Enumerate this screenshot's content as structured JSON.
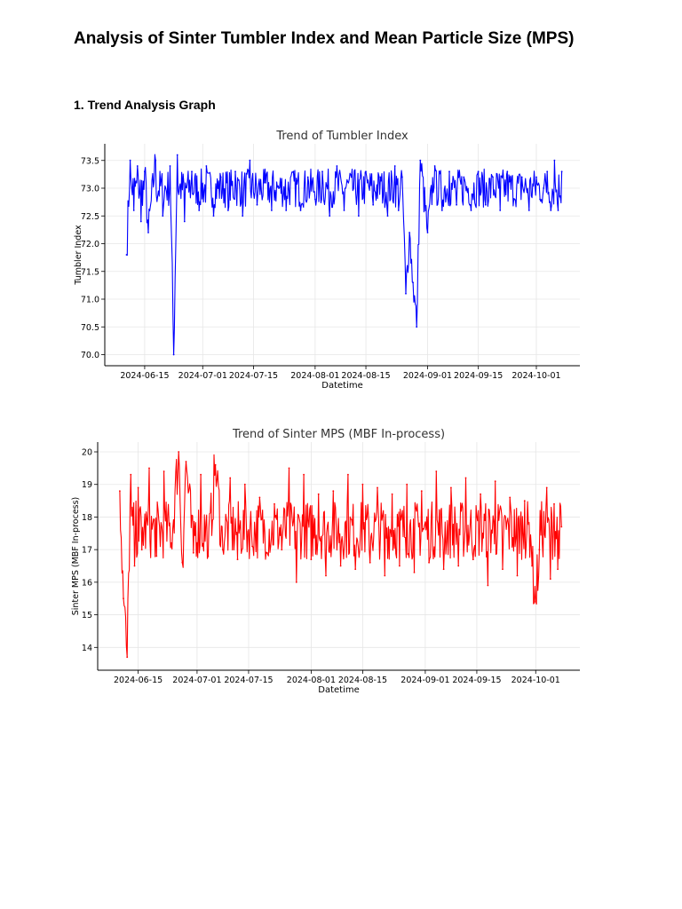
{
  "page": {
    "title": "Analysis of Sinter Tumbler Index and Mean Particle Size (MPS)",
    "section_heading": "1. Trend Analysis Graph"
  },
  "chart_data": [
    {
      "type": "line",
      "title": "Trend of Tumbler Index",
      "xlabel": "Datetime",
      "ylabel": "Tumbler Index",
      "x_ticks": [
        "2024-06-15",
        "2024-07-01",
        "2024-07-15",
        "2024-08-01",
        "2024-08-15",
        "2024-09-01",
        "2024-09-15",
        "2024-10-01"
      ],
      "y_ticks": [
        "70.0",
        "70.5",
        "71.0",
        "71.5",
        "72.0",
        "72.5",
        "73.0",
        "73.5"
      ],
      "xlim": [
        "2024-06-04",
        "2024-10-13"
      ],
      "ylim": [
        69.8,
        73.8
      ],
      "grid": true,
      "line_color": "#0000ff",
      "series": [
        {
          "x": [
            "2024-06-10",
            "2024-06-11",
            "2024-06-12",
            "2024-06-13",
            "2024-06-14",
            "2024-06-15",
            "2024-06-16",
            "2024-06-18",
            "2024-06-20",
            "2024-06-22",
            "2024-06-23",
            "2024-06-24",
            "2024-06-26",
            "2024-06-28",
            "2024-06-30",
            "2024-07-02",
            "2024-07-04",
            "2024-07-06",
            "2024-07-08",
            "2024-07-10",
            "2024-07-12",
            "2024-07-14",
            "2024-07-16",
            "2024-07-18",
            "2024-07-20",
            "2024-07-22",
            "2024-07-24",
            "2024-07-26",
            "2024-07-28",
            "2024-07-30",
            "2024-08-01",
            "2024-08-03",
            "2024-08-05",
            "2024-08-07",
            "2024-08-09",
            "2024-08-11",
            "2024-08-13",
            "2024-08-15",
            "2024-08-17",
            "2024-08-19",
            "2024-08-21",
            "2024-08-23",
            "2024-08-24",
            "2024-08-25",
            "2024-08-26",
            "2024-08-27",
            "2024-08-28",
            "2024-08-29",
            "2024-08-30",
            "2024-09-01",
            "2024-09-03",
            "2024-09-05",
            "2024-09-07",
            "2024-09-09",
            "2024-09-11",
            "2024-09-13",
            "2024-09-15",
            "2024-09-17",
            "2024-09-19",
            "2024-09-21",
            "2024-09-23",
            "2024-09-25",
            "2024-09-27",
            "2024-09-29",
            "2024-10-01",
            "2024-10-02",
            "2024-10-03",
            "2024-10-04",
            "2024-10-05",
            "2024-10-06",
            "2024-10-07",
            "2024-10-08"
          ],
          "y": [
            71.8,
            73.5,
            72.6,
            73.4,
            72.4,
            73.3,
            72.2,
            73.5,
            72.5,
            73.4,
            70.0,
            73.6,
            72.4,
            73.3,
            72.6,
            73.4,
            72.5,
            73.2,
            72.6,
            73.3,
            72.5,
            73.5,
            72.7,
            73.1,
            72.6,
            73.0,
            72.6,
            73.3,
            72.6,
            73.2,
            72.8,
            73.3,
            72.5,
            73.4,
            72.6,
            73.2,
            72.5,
            73.3,
            72.7,
            73.2,
            72.5,
            73.4,
            72.6,
            73.2,
            71.1,
            72.2,
            71.3,
            70.5,
            73.5,
            72.2,
            73.4,
            72.6,
            73.3,
            72.7,
            73.2,
            72.6,
            73.3,
            72.7,
            73.2,
            72.6,
            73.3,
            72.8,
            73.2,
            72.6,
            73.2,
            72.8,
            73.0,
            73.3,
            72.6,
            73.5,
            72.6,
            73.3
          ]
        }
      ]
    },
    {
      "type": "line",
      "title": "Trend of Sinter MPS (MBF In-process)",
      "xlabel": "Datetime",
      "ylabel": "Sinter MPS (MBF In-process)",
      "x_ticks": [
        "2024-06-15",
        "2024-07-01",
        "2024-07-15",
        "2024-08-01",
        "2024-08-15",
        "2024-09-01",
        "2024-09-15",
        "2024-10-01"
      ],
      "y_ticks": [
        "14",
        "15",
        "16",
        "17",
        "18",
        "19",
        "20"
      ],
      "xlim": [
        "2024-06-04",
        "2024-10-13"
      ],
      "ylim": [
        13.3,
        20.3
      ],
      "grid": true,
      "line_color": "#ff0000",
      "series": [
        {
          "x": [
            "2024-06-10",
            "2024-06-11",
            "2024-06-12",
            "2024-06-13",
            "2024-06-14",
            "2024-06-15",
            "2024-06-16",
            "2024-06-18",
            "2024-06-20",
            "2024-06-22",
            "2024-06-24",
            "2024-06-26",
            "2024-06-27",
            "2024-06-28",
            "2024-06-30",
            "2024-07-02",
            "2024-07-04",
            "2024-07-06",
            "2024-07-08",
            "2024-07-10",
            "2024-07-12",
            "2024-07-14",
            "2024-07-16",
            "2024-07-18",
            "2024-07-20",
            "2024-07-22",
            "2024-07-24",
            "2024-07-26",
            "2024-07-28",
            "2024-07-30",
            "2024-08-01",
            "2024-08-03",
            "2024-08-05",
            "2024-08-07",
            "2024-08-09",
            "2024-08-11",
            "2024-08-13",
            "2024-08-15",
            "2024-08-17",
            "2024-08-19",
            "2024-08-21",
            "2024-08-23",
            "2024-08-25",
            "2024-08-27",
            "2024-08-29",
            "2024-08-31",
            "2024-09-02",
            "2024-09-04",
            "2024-09-06",
            "2024-09-08",
            "2024-09-10",
            "2024-09-12",
            "2024-09-14",
            "2024-09-16",
            "2024-09-18",
            "2024-09-20",
            "2024-09-22",
            "2024-09-24",
            "2024-09-26",
            "2024-09-28",
            "2024-09-30",
            "2024-10-01",
            "2024-10-02",
            "2024-10-04",
            "2024-10-05",
            "2024-10-06",
            "2024-10-07",
            "2024-10-08"
          ],
          "y": [
            18.8,
            15.5,
            13.7,
            19.3,
            16.5,
            18.9,
            17.0,
            19.5,
            16.8,
            19.4,
            17.2,
            20.0,
            16.6,
            19.7,
            16.9,
            19.3,
            16.8,
            19.6,
            17.0,
            19.2,
            16.7,
            19.0,
            17.1,
            18.6,
            16.9,
            18.4,
            17.0,
            19.5,
            16.0,
            19.3,
            16.7,
            18.7,
            16.2,
            18.8,
            16.5,
            19.3,
            16.4,
            19.0,
            16.6,
            18.9,
            16.2,
            18.7,
            16.5,
            19.0,
            16.3,
            18.8,
            16.6,
            19.4,
            16.4,
            18.9,
            16.5,
            19.2,
            16.7,
            18.7,
            15.9,
            19.1,
            16.4,
            18.6,
            16.2,
            18.5,
            16.5,
            15.4,
            17.0,
            18.9,
            16.1,
            18.4,
            16.4,
            17.7
          ]
        }
      ]
    }
  ]
}
